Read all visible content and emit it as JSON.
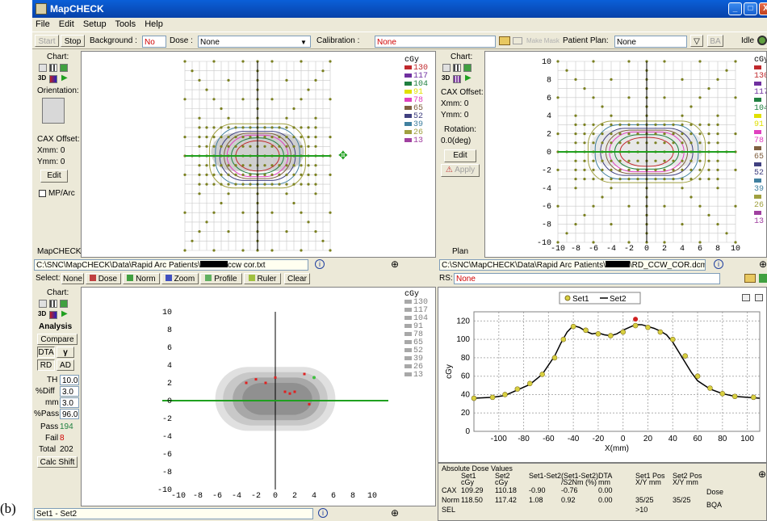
{
  "figure_label": "(b)",
  "window": {
    "title": "MapCHECK",
    "buttons": [
      "_",
      "□",
      "X"
    ]
  },
  "menu": [
    "File",
    "Edit",
    "Setup",
    "Tools",
    "Help"
  ],
  "toolbar": {
    "start": "Start",
    "stop": "Stop",
    "background_label": "Background :",
    "background_value": "No",
    "dose_label": "Dose :",
    "dose_value": "None",
    "calibration_label": "Calibration :",
    "calibration_value": "None",
    "patient_plan_label": "Patient Plan:",
    "patient_plan_value": "None",
    "ba": "BA",
    "status": "Idle"
  },
  "left_panel": {
    "chart_label": "Chart:",
    "orientation": "Orientation:",
    "cax_offset": "CAX Offset:",
    "xmm": "Xmm: 0",
    "ymm": "Ymm: 0",
    "edit": "Edit",
    "mparc": "MP/Arc",
    "bottom": "MapCHECK"
  },
  "plan_panel": {
    "chart_label": "Chart:",
    "cax_offset": "CAX Offset:",
    "xmm": "Xmm: 0",
    "ymm": "Ymm: 0",
    "rotation": "Rotation:",
    "rotation_value": "0.0(deg)",
    "edit": "Edit",
    "apply": "Apply",
    "bottom": "Plan"
  },
  "analysis_panel": {
    "chart_label": "Chart:",
    "analysis": "Analysis",
    "compare": "Compare",
    "dta": "DTA",
    "gamma": "γ",
    "rd": "RD",
    "ad": "AD",
    "th_label": "TH",
    "th": "10.0",
    "diff_label": "%Diff",
    "diff": "3.0",
    "mm_label": "mm",
    "mm": "3.0",
    "pass_pct_label": "%Pass",
    "pass_pct": "96.0",
    "pass_label": "Pass",
    "pass": "194",
    "fail_label": "Fail",
    "fail": "8",
    "total_label": "Total",
    "total": "202",
    "calc_shift": "Calc Shift"
  },
  "paths": {
    "measured": "C:\\SNC\\MapCHECK\\Data\\Rapid Arc Patients\\",
    "measured_suffix": "ccw cor.txt",
    "plan": "C:\\SNC\\MapCHECK\\Data\\Rapid Arc Patients\\",
    "plan_suffix": "\\RD_CCW_COR.dcm"
  },
  "select_bar": {
    "label": "Select:",
    "none": "None",
    "dose": "Dose",
    "norm": "Norm",
    "zoom": "Zoom",
    "profile": "Profile",
    "ruler": "Ruler",
    "clear": "Clear"
  },
  "rs_bar": {
    "label": "RS:",
    "value": "None"
  },
  "bottom_status": "Set1 - Set2",
  "units": "cGy",
  "legend_colored": {
    "values": [
      "130",
      "117",
      "104",
      "91",
      "78",
      "65",
      "52",
      "39",
      "26",
      "13"
    ],
    "colors": [
      "#c0282c",
      "#7030a0",
      "#208040",
      "#e0e000",
      "#e040c0",
      "#806040",
      "#404080",
      "#4080a0",
      "#a0a040",
      "#a040a0"
    ]
  },
  "legend_gray": [
    "130",
    "117",
    "104",
    "91",
    "78",
    "65",
    "52",
    "39",
    "26",
    "13"
  ],
  "map_ticks": [
    "10",
    "8",
    "6",
    "4",
    "2",
    "0",
    "-2",
    "-4",
    "-6",
    "-8",
    "-10"
  ],
  "map_xticks": [
    "-10",
    "-8",
    "-6",
    "-4",
    "-2",
    "0",
    "2",
    "4",
    "6",
    "8",
    "10"
  ],
  "profile_legend": {
    "set1": "Set1",
    "set2": "Set2"
  },
  "chart_data": {
    "type": "line",
    "xlabel": "X(mm)",
    "ylabel": "cGy",
    "xlim": [
      -120,
      110
    ],
    "ylim": [
      0,
      130
    ],
    "xticks": [
      "-100",
      "-80",
      "-60",
      "-40",
      "-20",
      "0",
      "20",
      "40",
      "60",
      "80",
      "100"
    ],
    "yticks": [
      "0",
      "20",
      "40",
      "60",
      "80",
      "100",
      "120"
    ],
    "series": [
      {
        "name": "Set1",
        "x": [
          -120,
          -105,
          -95,
          -85,
          -75,
          -65,
          -55,
          -48,
          -40,
          -30,
          -20,
          -10,
          0,
          10,
          20,
          30,
          40,
          50,
          60,
          70,
          80,
          90,
          105
        ],
        "values": [
          36,
          37,
          40,
          46,
          52,
          62,
          80,
          100,
          114,
          110,
          106,
          104,
          108,
          115,
          113,
          108,
          100,
          82,
          60,
          47,
          41,
          38,
          37
        ]
      },
      {
        "name": "Set2",
        "x": [
          -120,
          -105,
          -95,
          -85,
          -75,
          -65,
          -55,
          -50,
          -45,
          -40,
          -35,
          -30,
          -25,
          -20,
          -15,
          -10,
          -5,
          0,
          5,
          10,
          15,
          20,
          25,
          30,
          35,
          40,
          45,
          50,
          55,
          60,
          70,
          80,
          90,
          100,
          110
        ],
        "values": [
          36,
          37,
          39,
          45,
          51,
          62,
          82,
          96,
          108,
          115,
          113,
          109,
          106,
          107,
          105,
          104,
          106,
          110,
          113,
          116,
          116,
          114,
          112,
          109,
          105,
          97,
          86,
          75,
          64,
          55,
          46,
          41,
          38,
          37,
          36
        ]
      },
      {
        "name": "failed",
        "x": [
          10
        ],
        "values": [
          122
        ]
      }
    ]
  },
  "dose_table": {
    "title": "Absolute Dose Values",
    "headers": [
      "",
      "Set1\ncGy",
      "Set2\ncGy",
      "Set1-Set2",
      "(Set1-Set2)\n/S2Nm (%)",
      "DTA\nmm",
      "Set1 Pos\nX/Y mm",
      "Set2 Pos\nX/Y mm"
    ],
    "rows": [
      [
        "CAX",
        "109.29",
        "110.18",
        "-0.90",
        "-0.76",
        "0.00",
        "",
        ""
      ],
      [
        "Norm",
        "118.50",
        "117.42",
        "1.08",
        "0.92",
        "0.00",
        "35/25",
        "35/25"
      ],
      [
        "SEL",
        "",
        "",
        "",
        "",
        "",
        ">10",
        ""
      ]
    ],
    "side": [
      "Dose",
      "BQA"
    ]
  }
}
